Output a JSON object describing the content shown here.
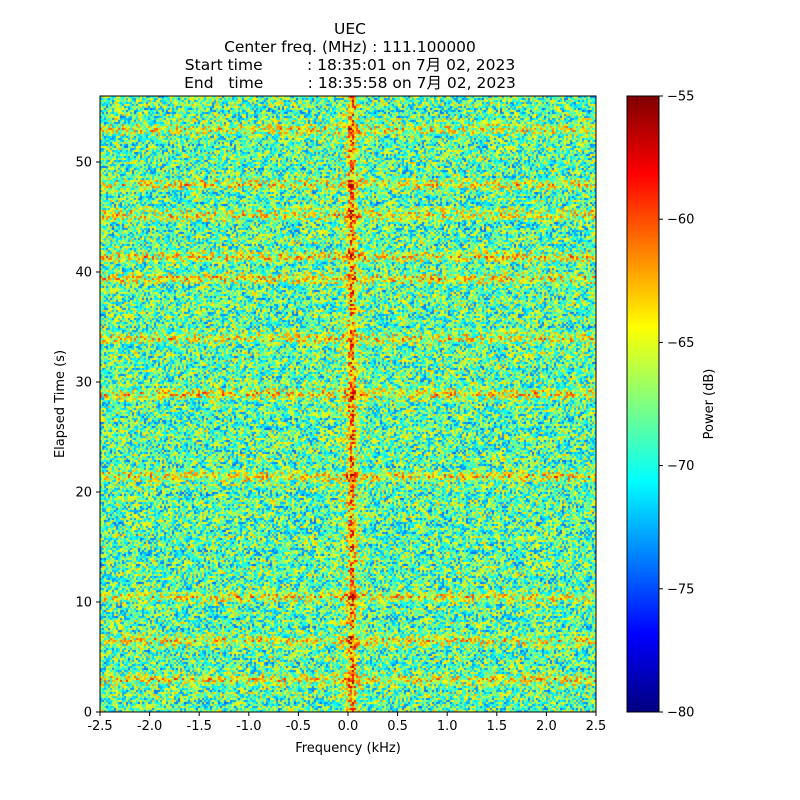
{
  "chart_data": {
    "type": "heatmap",
    "title_lines": [
      "UEC",
      "Center freq. (MHz) : 111.100000",
      "Start time         : 18:35:01 on 7月 02, 2023",
      "End   time         : 18:35:58 on 7月 02, 2023"
    ],
    "xlabel": "Frequency (kHz)",
    "ylabel": "Elapsed Time (s)",
    "xlim": [
      -2.5,
      2.5
    ],
    "ylim": [
      0,
      56
    ],
    "x_ticks": [
      -2.5,
      -2.0,
      -1.5,
      -1.0,
      -0.5,
      0.0,
      0.5,
      1.0,
      1.5,
      2.0,
      2.5
    ],
    "x_tick_labels": [
      "-2.5",
      "-2.0",
      "-1.5",
      "-1.0",
      "-0.5",
      "0.0",
      "0.5",
      "1.0",
      "1.5",
      "2.0",
      "2.5"
    ],
    "y_ticks": [
      0,
      10,
      20,
      30,
      40,
      50
    ],
    "y_tick_labels": [
      "0",
      "10",
      "20",
      "30",
      "40",
      "50"
    ],
    "colormap": "jet",
    "colorbar": {
      "label": "Power (dB)",
      "range": [
        -80,
        -55
      ],
      "ticks": [
        -80,
        -75,
        -70,
        -65,
        -60,
        -55
      ],
      "tick_labels": [
        "−80",
        "−75",
        "−70",
        "−65",
        "−60",
        "−55"
      ]
    },
    "features": {
      "carrier_freq_khz": 0.03,
      "horizontal_bands_s": [
        3,
        6.5,
        10.5,
        21.5,
        29,
        34,
        39.5,
        41.5,
        45.3,
        48,
        53
      ]
    }
  }
}
